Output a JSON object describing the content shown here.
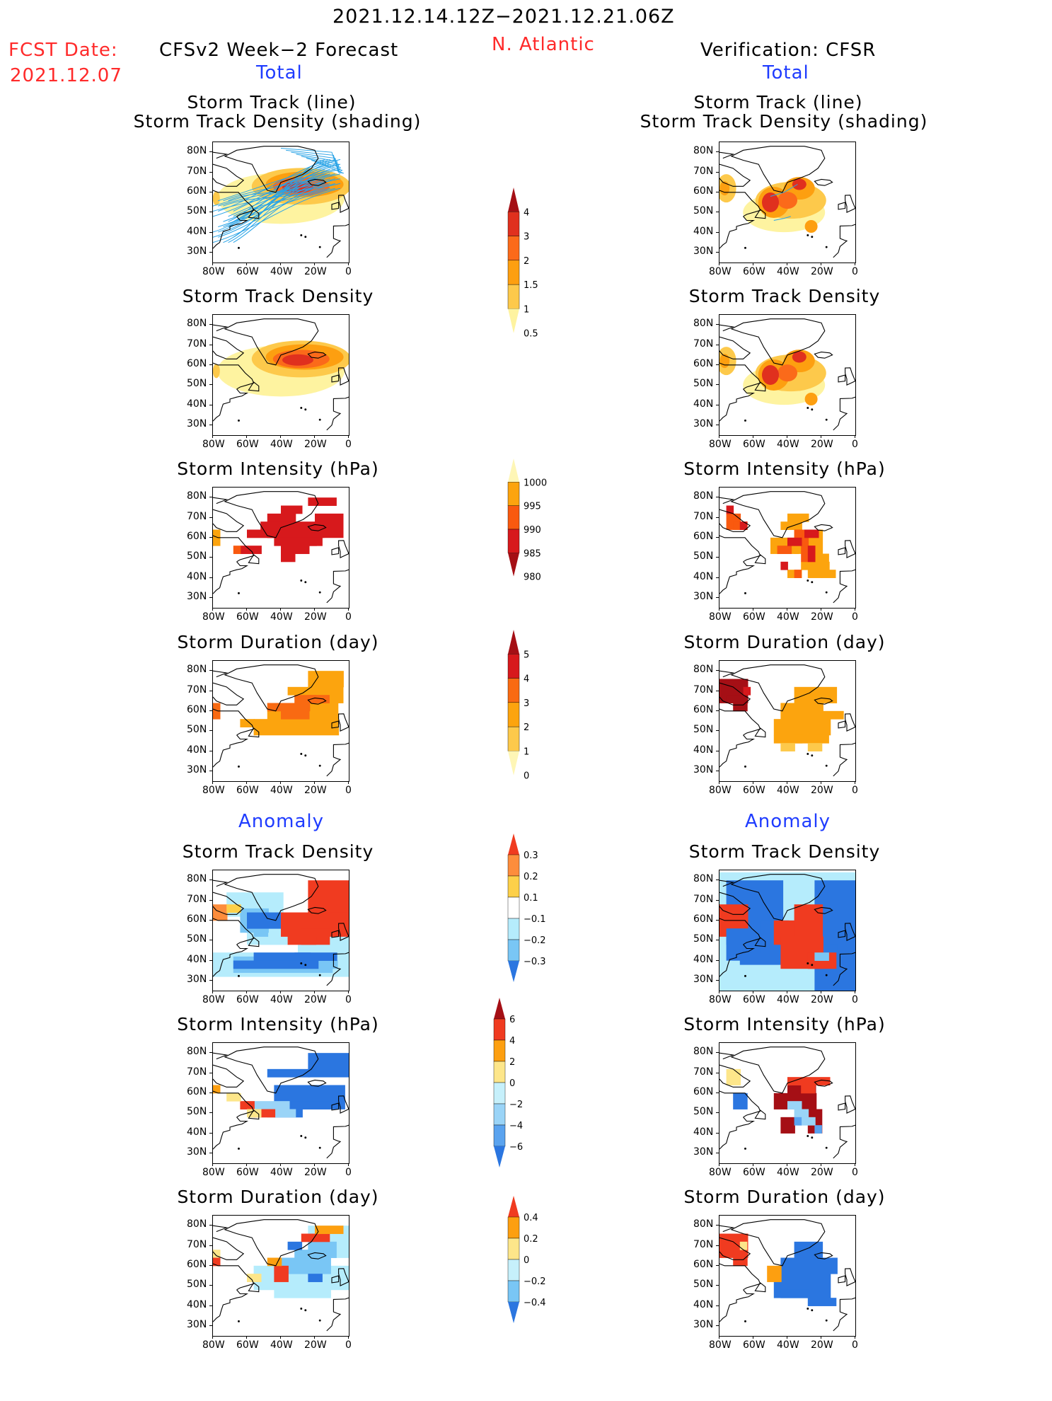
{
  "header": {
    "period": "2021.12.14.12Z−2021.12.21.06Z",
    "fcst_label": "FCST Date:",
    "fcst_date": "2021.12.07",
    "left_title": "CFSv2 Week−2 Forecast",
    "region": "N. Atlantic",
    "right_title": "Verification: CFSR",
    "total_label": "Total",
    "anomaly_label": "Anomaly"
  },
  "axes": {
    "lat_ticks": [
      "80N",
      "70N",
      "60N",
      "50N",
      "40N",
      "30N"
    ],
    "lon_ticks": [
      "80W",
      "60W",
      "40W",
      "20W",
      "0"
    ]
  },
  "panel_titles": {
    "track_line": "Storm Track (line)",
    "track_shading": "Storm Track Density (shading)",
    "track_density": "Storm Track Density",
    "intensity": "Storm Intensity (hPa)",
    "duration": "Storm Duration (day)"
  },
  "colorbars": {
    "density_total": {
      "labels": [
        "4",
        "3",
        "2",
        "1.5",
        "1",
        "0.5"
      ],
      "colors": [
        "#a50f15",
        "#e0301e",
        "#fb6a1a",
        "#fd9f10",
        "#fdc94b",
        "#fef3a0"
      ]
    },
    "intensity_total": {
      "labels": [
        "1000",
        "995",
        "990",
        "985",
        "980"
      ],
      "colors": [
        "#fef6b6",
        "#fca40e",
        "#f9590f",
        "#d7191c",
        "#a50f15"
      ]
    },
    "duration_total": {
      "labels": [
        "5",
        "4",
        "3",
        "2",
        "1",
        "0"
      ],
      "colors": [
        "#a50f15",
        "#d7191c",
        "#f96a12",
        "#fca40e",
        "#fdc94b",
        "#fef6b6"
      ]
    },
    "density_anom": {
      "labels": [
        "0.3",
        "0.2",
        "0.1",
        "−0.1",
        "−0.2",
        "−0.3"
      ],
      "colors": [
        "#f03b20",
        "#fd8d3c",
        "#fdd049",
        "#ffffff",
        "#b5ecfc",
        "#79c6f5",
        "#2b76e0"
      ]
    },
    "intensity_anom": {
      "labels": [
        "6",
        "4",
        "2",
        "0",
        "−2",
        "−4",
        "−6"
      ],
      "colors": [
        "#a50f15",
        "#f03b20",
        "#fd9f10",
        "#fde68a",
        "#c6f0fb",
        "#9ad4f7",
        "#5aa3ef",
        "#2b76e0"
      ]
    },
    "duration_anom": {
      "labels": [
        "0.4",
        "0.2",
        "0",
        "−0.2",
        "−0.4"
      ],
      "colors": [
        "#f03b20",
        "#fd9f10",
        "#fde68a",
        "#c6f0fb",
        "#79c6f5",
        "#2b76e0"
      ]
    }
  },
  "chart_data": [
    {
      "type": "heatmap",
      "panel": "CFSv2 Storm Track (line) / Storm Track Density (shading)",
      "title": "Storm Track (line)\nStorm Track Density (shading)",
      "region": "N. Atlantic"
    },
    {
      "type": "heatmap",
      "panel": "CFSR Storm Track (line) / Storm Track Density (shading)",
      "title": "Storm Track (line)\nStorm Track Density (shading)"
    },
    {
      "type": "heatmap",
      "panel": "CFSv2 Storm Track Density",
      "title": "Storm Track Density"
    },
    {
      "type": "heatmap",
      "panel": "CFSR Storm Track Density",
      "title": "Storm Track Density"
    },
    {
      "type": "heatmap",
      "panel": "CFSv2 Storm Intensity (hPa)",
      "title": "Storm Intensity (hPa)"
    },
    {
      "type": "heatmap",
      "panel": "CFSR Storm Intensity (hPa)",
      "title": "Storm Intensity (hPa)"
    },
    {
      "type": "heatmap",
      "panel": "CFSv2 Storm Duration (day)",
      "title": "Storm Duration (day)"
    },
    {
      "type": "heatmap",
      "panel": "CFSR Storm Duration (day)",
      "title": "Storm Duration (day)"
    },
    {
      "type": "heatmap",
      "panel": "CFSv2 Anomaly Storm Track Density",
      "title": "Storm Track Density"
    },
    {
      "type": "heatmap",
      "panel": "CFSR Anomaly Storm Track Density",
      "title": "Storm Track Density"
    },
    {
      "type": "heatmap",
      "panel": "CFSv2 Anomaly Storm Intensity (hPa)",
      "title": "Storm Intensity (hPa)"
    },
    {
      "type": "heatmap",
      "panel": "CFSR Anomaly Storm Intensity (hPa)",
      "title": "Storm Intensity (hPa)"
    },
    {
      "type": "heatmap",
      "panel": "CFSv2 Anomaly Storm Duration (day)",
      "title": "Storm Duration (day)"
    },
    {
      "type": "heatmap",
      "panel": "CFSR Anomaly Storm Duration (day)",
      "title": "Storm Duration (day)"
    }
  ]
}
